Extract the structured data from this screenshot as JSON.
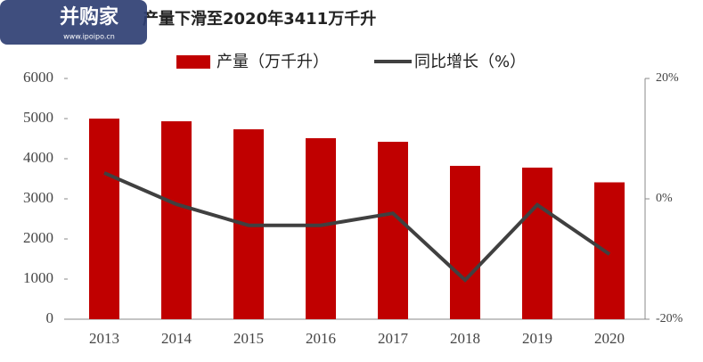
{
  "watermark": {
    "brand": "并购家",
    "site": "www.ipoipo.cn"
  },
  "chart_data": {
    "type": "bar-line",
    "title": "产量下滑至2020年3411万千升",
    "categories": [
      "2013",
      "2014",
      "2015",
      "2016",
      "2017",
      "2018",
      "2019",
      "2020"
    ],
    "series": [
      {
        "name": "产量（万千升）",
        "color": "#c00000",
        "type": "bar",
        "values": [
          5000,
          4933,
          4733,
          4511,
          4422,
          3822,
          3778,
          3411
        ]
      },
      {
        "name": "同比增长（%）",
        "color": "#404040",
        "type": "line",
        "axis": "y2",
        "values": [
          4.3,
          -0.9,
          -4.4,
          -4.4,
          -2.4,
          -13.5,
          -1.0,
          -9.2
        ]
      }
    ],
    "ylim": [
      0,
      6000
    ],
    "yticks": [
      0,
      1000,
      2000,
      3000,
      4000,
      5000,
      6000
    ],
    "y2lim": [
      -20,
      20
    ],
    "y2ticks": [
      {
        "value": -20,
        "label": "-20%"
      },
      {
        "value": 0,
        "label": "0%"
      },
      {
        "value": 20,
        "label": "20%"
      }
    ],
    "legend": "top"
  }
}
